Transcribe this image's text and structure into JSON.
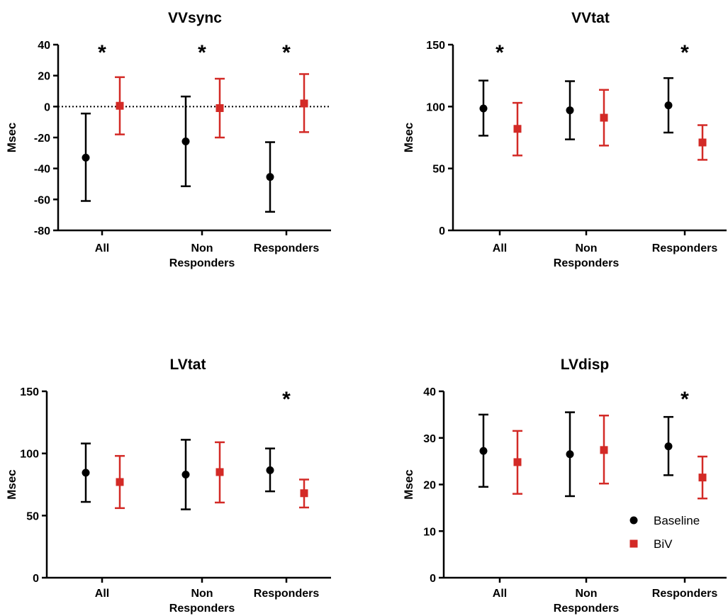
{
  "colors": {
    "baseline": "#000000",
    "biv": "#d32a26"
  },
  "legend": {
    "baseline": "Baseline",
    "biv": "BiV"
  },
  "chart_data": [
    {
      "type": "scatter",
      "title": "VVsync",
      "ylabel": "Msec",
      "ylim": [
        -80,
        40
      ],
      "yticks": [
        "40",
        "20",
        "0",
        "-20",
        "-40",
        "-60",
        "-80"
      ],
      "zero_line": true,
      "categories": [
        {
          "lines": [
            "All"
          ]
        },
        {
          "lines": [
            "Non",
            "Responders"
          ]
        },
        {
          "lines": [
            "Responders"
          ]
        }
      ],
      "series": [
        {
          "key": "baseline",
          "marker": "circle",
          "values": [
            -33,
            -22.5,
            -45.5
          ],
          "lower": [
            -61,
            -51.5,
            -68
          ],
          "upper": [
            -4.5,
            6.5,
            -23
          ]
        },
        {
          "key": "biv",
          "marker": "square",
          "values": [
            0.5,
            -1,
            2
          ],
          "lower": [
            -18,
            -20,
            -16.5
          ],
          "upper": [
            19,
            18,
            21
          ]
        }
      ],
      "significant": [
        "*",
        "*",
        "*"
      ]
    },
    {
      "type": "scatter",
      "title": "VVtat",
      "ylabel": "Msec",
      "ylim": [
        0,
        150
      ],
      "yticks": [
        "150",
        "100",
        "50",
        "0"
      ],
      "zero_line": false,
      "categories": [
        {
          "lines": [
            "All"
          ]
        },
        {
          "lines": [
            "Non",
            "Responders"
          ]
        },
        {
          "lines": [
            "Responders"
          ]
        }
      ],
      "series": [
        {
          "key": "baseline",
          "marker": "circle",
          "values": [
            98.5,
            97,
            101
          ],
          "lower": [
            76.5,
            73.5,
            79
          ],
          "upper": [
            121,
            120.5,
            123
          ]
        },
        {
          "key": "biv",
          "marker": "square",
          "values": [
            82,
            91,
            71
          ],
          "lower": [
            60.5,
            68.5,
            57
          ],
          "upper": [
            103,
            113.5,
            85
          ]
        }
      ],
      "significant": [
        "*",
        "",
        "*"
      ]
    },
    {
      "type": "scatter",
      "title": "LVtat",
      "ylabel": "Msec",
      "ylim": [
        0,
        150
      ],
      "yticks": [
        "150",
        "100",
        "50",
        "0"
      ],
      "zero_line": false,
      "categories": [
        {
          "lines": [
            "All"
          ]
        },
        {
          "lines": [
            "Non",
            "Responders"
          ]
        },
        {
          "lines": [
            "Responders"
          ]
        }
      ],
      "series": [
        {
          "key": "baseline",
          "marker": "circle",
          "values": [
            84.5,
            83,
            86.5
          ],
          "lower": [
            61,
            55,
            69.5
          ],
          "upper": [
            108,
            111,
            104
          ]
        },
        {
          "key": "biv",
          "marker": "square",
          "values": [
            77,
            85,
            68
          ],
          "lower": [
            56,
            60.5,
            56.5
          ],
          "upper": [
            98,
            109,
            79
          ]
        }
      ],
      "significant": [
        "",
        "",
        "*"
      ]
    },
    {
      "type": "scatter",
      "title": "LVdisp",
      "ylabel": "Msec",
      "ylim": [
        0,
        40
      ],
      "yticks": [
        "40",
        "30",
        "20",
        "10",
        "0"
      ],
      "zero_line": false,
      "categories": [
        {
          "lines": [
            "All"
          ]
        },
        {
          "lines": [
            "Non",
            "Responders"
          ]
        },
        {
          "lines": [
            "Responders"
          ]
        }
      ],
      "series": [
        {
          "key": "baseline",
          "marker": "circle",
          "values": [
            27.2,
            26.5,
            28.2
          ],
          "lower": [
            19.5,
            17.5,
            22
          ],
          "upper": [
            35,
            35.5,
            34.5
          ]
        },
        {
          "key": "biv",
          "marker": "square",
          "values": [
            24.8,
            27.4,
            21.5
          ],
          "lower": [
            18,
            20.2,
            17
          ],
          "upper": [
            31.5,
            34.8,
            26
          ]
        }
      ],
      "significant": [
        "",
        "",
        "*"
      ]
    }
  ]
}
